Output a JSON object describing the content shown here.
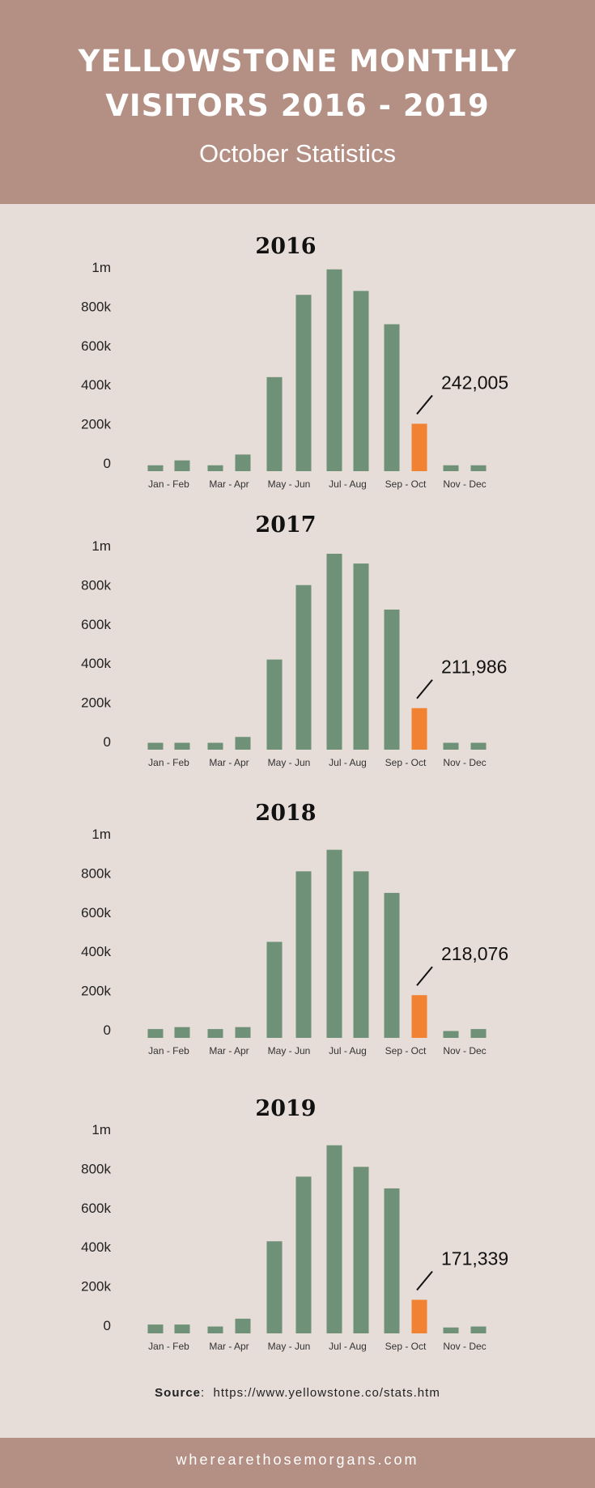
{
  "header": {
    "title_line1": "YELLOWSTONE MONTHLY",
    "title_line2": "VISITORS 2016 - 2019",
    "subtitle": "October Statistics"
  },
  "colors": {
    "header_bg": "#b48f84",
    "page_bg": "#e6dcd8",
    "bar": "#6e9177",
    "highlight": "#f08231"
  },
  "chart_data": [
    {
      "type": "bar",
      "title": "2016",
      "categories": [
        "Jan",
        "Feb",
        "Mar",
        "Apr",
        "May",
        "Jun",
        "Jul",
        "Aug",
        "Sep",
        "Oct",
        "Nov",
        "Dec"
      ],
      "x_tick_labels": [
        "Jan - Feb",
        "Mar - Apr",
        "May - Jun",
        "Jul - Aug",
        "Sep - Oct",
        "Nov - Dec"
      ],
      "y_tick_labels": [
        "0",
        "200k",
        "400k",
        "600k",
        "800k",
        "1m"
      ],
      "ylim": [
        0,
        1000000
      ],
      "values": [
        30000,
        55000,
        30000,
        85000,
        480000,
        900000,
        1030000,
        920000,
        750000,
        242005,
        30000,
        30000
      ],
      "highlight_index": 9,
      "annotation": "242,005"
    },
    {
      "type": "bar",
      "title": "2017",
      "categories": [
        "Jan",
        "Feb",
        "Mar",
        "Apr",
        "May",
        "Jun",
        "Jul",
        "Aug",
        "Sep",
        "Oct",
        "Nov",
        "Dec"
      ],
      "x_tick_labels": [
        "Jan - Feb",
        "Mar - Apr",
        "May - Jun",
        "Jul - Aug",
        "Sep - Oct",
        "Nov - Dec"
      ],
      "y_tick_labels": [
        "0",
        "200k",
        "400k",
        "600k",
        "800k",
        "1m"
      ],
      "ylim": [
        0,
        1000000
      ],
      "values": [
        35000,
        35000,
        35000,
        65000,
        460000,
        840000,
        1000000,
        950000,
        715000,
        211986,
        35000,
        35000
      ],
      "highlight_index": 9,
      "annotation": "211,986"
    },
    {
      "type": "bar",
      "title": "2018",
      "categories": [
        "Jan",
        "Feb",
        "Mar",
        "Apr",
        "May",
        "Jun",
        "Jul",
        "Aug",
        "Sep",
        "Oct",
        "Nov",
        "Dec"
      ],
      "x_tick_labels": [
        "Jan - Feb",
        "Mar - Apr",
        "May - Jun",
        "Jul - Aug",
        "Sep - Oct",
        "Nov - Dec"
      ],
      "y_tick_labels": [
        "0",
        "200k",
        "400k",
        "600k",
        "800k",
        "1m"
      ],
      "ylim": [
        0,
        1000000
      ],
      "values": [
        45000,
        55000,
        45000,
        55000,
        490000,
        850000,
        960000,
        850000,
        740000,
        218076,
        35000,
        45000
      ],
      "highlight_index": 9,
      "annotation": "218,076"
    },
    {
      "type": "bar",
      "title": "2019",
      "categories": [
        "Jan",
        "Feb",
        "Mar",
        "Apr",
        "May",
        "Jun",
        "Jul",
        "Aug",
        "Sep",
        "Oct",
        "Nov",
        "Dec"
      ],
      "x_tick_labels": [
        "Jan - Feb",
        "Mar - Apr",
        "May - Jun",
        "Jul - Aug",
        "Sep - Oct",
        "Nov - Dec"
      ],
      "y_tick_labels": [
        "0",
        "200k",
        "400k",
        "600k",
        "800k",
        "1m"
      ],
      "ylim": [
        0,
        1000000
      ],
      "values": [
        45000,
        45000,
        35000,
        75000,
        470000,
        800000,
        960000,
        850000,
        740000,
        171339,
        30000,
        35000
      ],
      "highlight_index": 9,
      "annotation": "171,339"
    }
  ],
  "source": {
    "label": "Source",
    "url": "https://www.yellowstone.co/stats.htm"
  },
  "footer": {
    "site": "wherearethosemorgans.com"
  }
}
